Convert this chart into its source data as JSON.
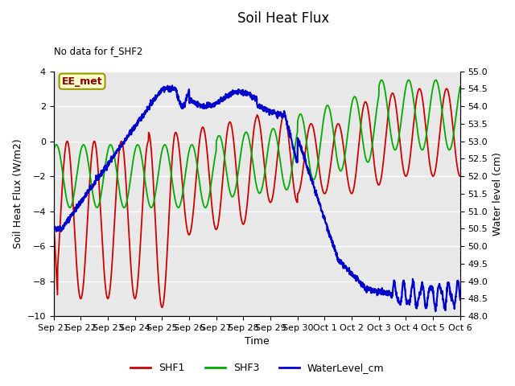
{
  "title": "Soil Heat Flux",
  "subtitle": "No data for f_SHF2",
  "ylabel_left": "Soil Heat Flux (W/m2)",
  "ylabel_right": "Water level (cm)",
  "xlabel": "Time",
  "ylim_left": [
    -10,
    4
  ],
  "ylim_right": [
    48.0,
    55.0
  ],
  "yticks_left": [
    -10,
    -8,
    -6,
    -4,
    -2,
    0,
    2,
    4
  ],
  "yticks_right": [
    48.0,
    48.5,
    49.0,
    49.5,
    50.0,
    50.5,
    51.0,
    51.5,
    52.0,
    52.5,
    53.0,
    53.5,
    54.0,
    54.5,
    55.0
  ],
  "xtick_labels": [
    "Sep 21",
    "Sep 22",
    "Sep 23",
    "Sep 24",
    "Sep 25",
    "Sep 26",
    "Sep 27",
    "Sep 28",
    "Sep 29",
    "Sep 30",
    "Oct 1",
    "Oct 2",
    "Oct 3",
    "Oct 4",
    "Oct 5",
    "Oct 6"
  ],
  "legend_label": "EE_met",
  "shf1_color": "#cc0000",
  "shf3_color": "#00aa00",
  "wl_color": "#0000cc",
  "bg_color": "#ffffff",
  "plot_bg": "#e8e8e8",
  "grid_color": "#ffffff",
  "legend_items": [
    "SHF1",
    "SHF3",
    "WaterLevel_cm"
  ],
  "eemet_facecolor": "#ffffcc",
  "eemet_edgecolor": "#999900",
  "eemet_textcolor": "#880000"
}
